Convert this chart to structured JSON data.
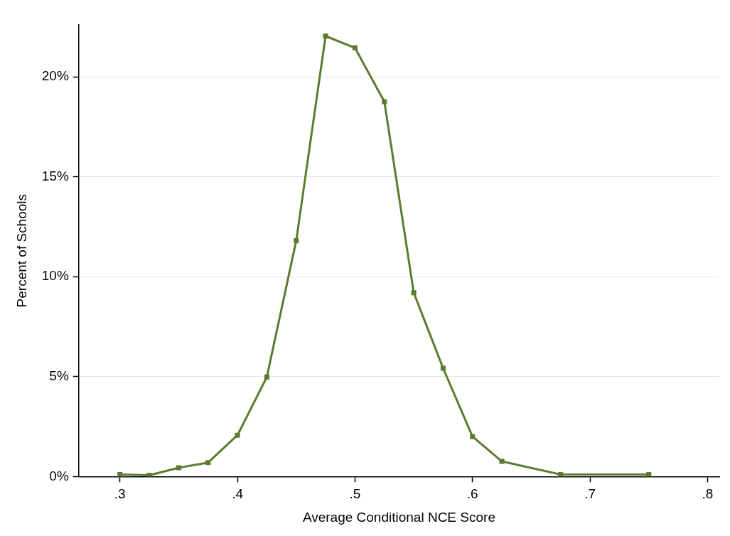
{
  "chart_data": {
    "type": "line",
    "xlabel": "Average Conditional NCE Score",
    "ylabel": "Percent of Schools",
    "x": [
      0.3,
      0.325,
      0.35,
      0.375,
      0.4,
      0.425,
      0.45,
      0.475,
      0.5,
      0.525,
      0.55,
      0.575,
      0.6,
      0.625,
      0.675,
      0.75
    ],
    "series": [
      {
        "color": "#5b7b2f",
        "values": [
          0.1,
          0.07,
          0.44,
          0.7,
          2.07,
          4.98,
          11.8,
          22.04,
          21.45,
          18.76,
          9.2,
          5.42,
          2.0,
          0.76,
          0.1,
          0.1
        ]
      }
    ],
    "xlim": [
      0.265,
      0.81
    ],
    "xticks": [
      {
        "value": 0.3,
        "label": ".3"
      },
      {
        "value": 0.4,
        "label": ".4"
      },
      {
        "value": 0.5,
        "label": ".5"
      },
      {
        "value": 0.6,
        "label": ".6"
      },
      {
        "value": 0.7,
        "label": ".7"
      },
      {
        "value": 0.8,
        "label": ".8"
      }
    ],
    "ylim": [
      0,
      22.6
    ],
    "yticks": [
      {
        "value": 0,
        "label": "0%"
      },
      {
        "value": 5,
        "label": "5%"
      },
      {
        "value": 10,
        "label": "10%"
      },
      {
        "value": 15,
        "label": "15%"
      },
      {
        "value": 20,
        "label": "20%"
      }
    ],
    "grid": "y",
    "legend": false,
    "marker": "square",
    "line_style": "solid"
  }
}
